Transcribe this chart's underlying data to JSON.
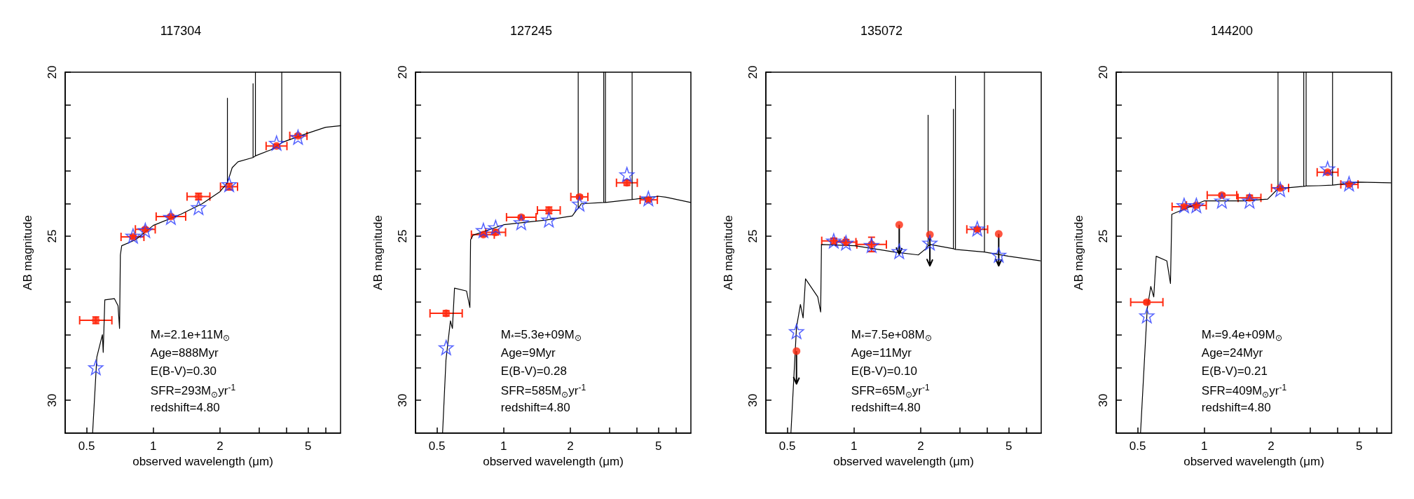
{
  "chart_data": [
    {
      "type": "scatter",
      "title": "117304",
      "xlabel": "observed wavelength (μm)",
      "ylabel": "AB magnitude",
      "log": "x",
      "xlim": [
        0.4,
        7
      ],
      "ylim": [
        31,
        20
      ],
      "xticks": [
        0.5,
        1,
        2,
        {
          "value": 3,
          "label": null
        },
        {
          "value": 4,
          "label": null
        },
        5,
        {
          "value": 6,
          "label": null
        }
      ],
      "yticks": [
        20,
        {
          "value": 21,
          "label": null
        },
        {
          "value": 22,
          "label": null
        },
        {
          "value": 23,
          "label": null
        },
        {
          "value": 24,
          "label": null
        },
        25,
        {
          "value": 26,
          "label": null
        },
        {
          "value": 27,
          "label": null
        },
        {
          "value": 28,
          "label": null
        },
        {
          "value": 29,
          "label": null
        },
        30
      ],
      "annotations": [
        "M$_{*}$=2.1e+11M$_{⊙}$",
        "Age=888Myr",
        "E(B-V)=0.30",
        "SFR=293M$_{⊙}$yr$^{-1}$",
        "redshift=4.80"
      ],
      "series": [
        {
          "type": "line",
          "color": "#000000",
          "marker": "none",
          "x": [
            0.532,
            0.556,
            0.589,
            0.594,
            0.604,
            0.667,
            0.693,
            0.704,
            0.71,
            0.72,
            0.83,
            1.0,
            1.33,
            1.66,
            2.0,
            2.16,
            2.16,
            2.16,
            2.27,
            2.41,
            2.82,
            2.82,
            2.82,
            2.89,
            2.89,
            2.89,
            3.41,
            3.8,
            3.8,
            3.8,
            3.99,
            4.97,
            5.99,
            7.0
          ],
          "values": [
            31.0,
            28.68,
            28.0,
            28.54,
            26.94,
            26.9,
            27.12,
            27.81,
            25.57,
            25.29,
            25.11,
            24.67,
            24.33,
            24.01,
            23.64,
            23.37,
            20.79,
            23.37,
            22.91,
            22.73,
            22.6,
            20.35,
            22.6,
            22.55,
            20.0,
            22.55,
            22.36,
            22.15,
            20.0,
            22.15,
            22.09,
            21.86,
            21.68,
            21.63
          ]
        },
        {
          "color": "#ff2a10",
          "marker": "circle",
          "x": [
            0.55,
            0.81,
            0.92,
            1.2,
            1.6,
            2.2,
            3.6,
            4.5
          ],
          "values": [
            27.56,
            25.02,
            24.79,
            24.4,
            23.79,
            23.49,
            22.25,
            21.94
          ],
          "errors": [
            0.1,
            0.05,
            0.05,
            0.05,
            0.1,
            0.1,
            0.05,
            0.05
          ],
          "xerrors": [
            [
              0.465,
              0.65
            ],
            [
              0.715,
              0.907
            ],
            [
              0.83,
              1.02
            ],
            [
              1.03,
              1.4
            ],
            [
              1.42,
              1.8
            ],
            [
              2.01,
              2.4
            ],
            [
              3.23,
              4.01
            ],
            [
              4.13,
              4.94
            ]
          ]
        },
        {
          "color": "#2a3cff",
          "marker": "star",
          "x": [
            0.55,
            0.81,
            0.92,
            1.2,
            1.6,
            2.2,
            3.6,
            4.5
          ],
          "values": [
            29.0,
            24.99,
            24.82,
            24.42,
            24.12,
            23.42,
            22.16,
            21.98
          ]
        }
      ]
    },
    {
      "type": "scatter",
      "title": "127245",
      "xlabel": "observed wavelength (μm)",
      "ylabel": "AB magnitude",
      "log": "x",
      "xlim": [
        0.4,
        7
      ],
      "ylim": [
        31,
        20
      ],
      "xticks": [
        0.5,
        1,
        2,
        {
          "value": 3,
          "label": null
        },
        {
          "value": 4,
          "label": null
        },
        5,
        {
          "value": 6,
          "label": null
        }
      ],
      "yticks": [
        20,
        {
          "value": 21,
          "label": null
        },
        {
          "value": 22,
          "label": null
        },
        {
          "value": 23,
          "label": null
        },
        {
          "value": 24,
          "label": null
        },
        25,
        {
          "value": 26,
          "label": null
        },
        {
          "value": 27,
          "label": null
        },
        {
          "value": 28,
          "label": null
        },
        {
          "value": 29,
          "label": null
        },
        30
      ],
      "annotations": [
        "M$_{*}$=5.3e+09M$_{⊙}$",
        "Age=9Myr",
        "E(B-V)=0.28",
        "SFR=585M$_{⊙}$yr$^{-1}$",
        "redshift=4.80"
      ],
      "series": [
        {
          "type": "line",
          "color": "#000000",
          "marker": "none",
          "x": [
            0.53,
            0.549,
            0.575,
            0.587,
            0.6,
            0.68,
            0.704,
            0.709,
            0.727,
            1.0,
            1.54,
            2.04,
            2.14,
            2.17,
            2.17,
            2.17,
            2.24,
            2.83,
            2.83,
            2.83,
            2.88,
            2.88,
            2.88,
            3.8,
            3.8,
            3.8,
            3.93,
            4.98,
            5.4,
            6.98
          ],
          "values": [
            31.0,
            28.77,
            27.58,
            27.81,
            26.58,
            26.67,
            27.17,
            25.11,
            24.97,
            24.65,
            24.51,
            24.38,
            24.19,
            24.15,
            20.0,
            24.15,
            24.01,
            23.97,
            20.0,
            23.97,
            23.97,
            20.0,
            23.97,
            23.88,
            20.0,
            23.88,
            23.87,
            23.78,
            23.81,
            23.97
          ]
        },
        {
          "color": "#ff2a10",
          "marker": "circle",
          "x": [
            0.55,
            0.81,
            0.92,
            1.2,
            1.6,
            2.2,
            3.6,
            4.5
          ],
          "values": [
            27.35,
            24.95,
            24.88,
            24.42,
            24.21,
            23.8,
            23.37,
            23.89
          ],
          "errors": [
            0.08,
            0.05,
            0.08,
            0.05,
            0.1,
            0.05,
            0.08,
            0.05
          ],
          "xerrors": [
            [
              0.465,
              0.65
            ],
            [
              0.715,
              0.907
            ],
            [
              0.83,
              1.02
            ],
            [
              1.03,
              1.4
            ],
            [
              1.42,
              1.8
            ],
            [
              2.01,
              2.4
            ],
            [
              3.23,
              4.01
            ],
            [
              4.13,
              4.94
            ]
          ]
        },
        {
          "color": "#2a3cff",
          "marker": "star",
          "x": [
            0.55,
            0.81,
            0.92,
            1.2,
            1.6,
            2.2,
            3.6,
            4.5
          ],
          "values": [
            28.39,
            24.82,
            24.73,
            24.58,
            24.5,
            24.01,
            23.12,
            23.85
          ]
        }
      ]
    },
    {
      "type": "scatter",
      "title": "135072",
      "xlabel": "observed wavelength (μm)",
      "ylabel": "AB magnitude",
      "log": "x",
      "xlim": [
        0.4,
        7
      ],
      "ylim": [
        31,
        20
      ],
      "xticks": [
        0.5,
        1,
        2,
        {
          "value": 3,
          "label": null
        },
        {
          "value": 4,
          "label": null
        },
        5,
        {
          "value": 6,
          "label": null
        }
      ],
      "yticks": [
        20,
        {
          "value": 21,
          "label": null
        },
        {
          "value": 22,
          "label": null
        },
        {
          "value": 23,
          "label": null
        },
        {
          "value": 24,
          "label": null
        },
        25,
        {
          "value": 26,
          "label": null
        },
        {
          "value": 27,
          "label": null
        },
        {
          "value": 28,
          "label": null
        },
        {
          "value": 29,
          "label": null
        },
        30
      ],
      "annotations": [
        "M$_{*}$=7.5e+08M$_{⊙}$",
        "Age=11Myr",
        "E(B-V)=0.10",
        "SFR=65M$_{⊙}$yr$^{-1}$",
        "redshift=4.80"
      ],
      "series": [
        {
          "type": "line",
          "color": "#000000",
          "marker": "none",
          "x": [
            0.519,
            0.55,
            0.573,
            0.589,
            0.604,
            0.686,
            0.707,
            0.713,
            1.01,
            1.52,
            1.95,
            2.11,
            2.16,
            2.16,
            2.16,
            2.21,
            2.81,
            2.81,
            2.81,
            2.87,
            2.87,
            2.87,
            3.88,
            3.88,
            3.88,
            4.99,
            6.93
          ],
          "values": [
            31.0,
            27.77,
            27.08,
            27.49,
            26.3,
            26.85,
            27.31,
            25.25,
            25.29,
            25.48,
            25.57,
            25.38,
            25.3,
            21.31,
            25.3,
            25.25,
            25.38,
            21.13,
            25.38,
            25.4,
            20.12,
            25.4,
            25.48,
            20.0,
            25.48,
            25.61,
            25.75
          ]
        },
        {
          "color": "#ff2a10",
          "marker": "circle",
          "x": [
            0.55,
            0.81,
            0.92,
            1.2,
            1.6,
            2.2,
            3.6,
            4.5
          ],
          "values": [
            28.5,
            25.14,
            25.18,
            25.25,
            24.65,
            24.95,
            24.79,
            24.93
          ],
          "errors": [
            [
              28.5,
              29.5
            ],
            0.08,
            0.08,
            0.22,
            [
              24.65,
              25.55
            ],
            [
              24.95,
              25.9
            ],
            0.05,
            [
              24.93,
              25.9
            ]
          ],
          "xerrors": [
            null,
            [
              0.715,
              0.907
            ],
            [
              0.83,
              1.02
            ],
            [
              1.03,
              1.4
            ],
            null,
            null,
            [
              3.23,
              4.01
            ],
            null
          ]
        },
        {
          "color": "#2a3cff",
          "marker": "star",
          "x": [
            0.55,
            0.81,
            0.92,
            1.2,
            1.6,
            2.2,
            3.6,
            4.5
          ],
          "values": [
            27.9,
            25.14,
            25.2,
            25.27,
            25.46,
            25.2,
            24.77,
            25.57
          ]
        }
      ]
    },
    {
      "type": "scatter",
      "title": "144200",
      "xlabel": "observed wavelength (μm)",
      "ylabel": "AB magnitude",
      "log": "x",
      "xlim": [
        0.4,
        7
      ],
      "ylim": [
        31,
        20
      ],
      "xticks": [
        0.5,
        1,
        2,
        {
          "value": 3,
          "label": null
        },
        {
          "value": 4,
          "label": null
        },
        5,
        {
          "value": 6,
          "label": null
        }
      ],
      "yticks": [
        20,
        {
          "value": 21,
          "label": null
        },
        {
          "value": 22,
          "label": null
        },
        {
          "value": 23,
          "label": null
        },
        {
          "value": 24,
          "label": null
        },
        25,
        {
          "value": 26,
          "label": null
        },
        {
          "value": 27,
          "label": null
        },
        {
          "value": 28,
          "label": null
        },
        {
          "value": 29,
          "label": null
        },
        30
      ],
      "annotations": [
        "M$_{*}$=9.4e+09M$_{⊙}$",
        "Age=24Myr",
        "E(B-V)=0.21",
        "SFR=409M$_{⊙}$yr$^{-1}$",
        "redshift=4.80"
      ],
      "series": [
        {
          "type": "line",
          "color": "#000000",
          "marker": "none",
          "x": [
            0.515,
            0.552,
            0.573,
            0.591,
            0.606,
            0.677,
            0.703,
            0.713,
            1.0,
            1.5,
            1.93,
            2.15,
            2.15,
            2.15,
            2.48,
            2.81,
            2.81,
            2.81,
            2.88,
            2.88,
            2.88,
            3.28,
            3.79,
            3.79,
            3.79,
            5.0,
            6.95
          ],
          "values": [
            31.0,
            27.22,
            26.53,
            26.85,
            25.61,
            25.75,
            26.44,
            24.33,
            23.92,
            23.92,
            23.87,
            23.55,
            20.0,
            23.55,
            23.51,
            23.48,
            20.0,
            23.48,
            23.47,
            20.0,
            23.47,
            23.46,
            23.44,
            20.0,
            23.44,
            23.35,
            23.37
          ]
        },
        {
          "color": "#ff2a10",
          "marker": "circle",
          "x": [
            0.55,
            0.81,
            0.92,
            1.2,
            1.6,
            2.2,
            3.6,
            4.5
          ],
          "values": [
            27.01,
            24.1,
            24.06,
            23.75,
            23.83,
            23.53,
            23.05,
            23.42
          ],
          "errors": [
            0.05,
            0.05,
            0.05,
            0.05,
            0.08,
            0.05,
            0.05,
            0.05
          ],
          "xerrors": [
            [
              0.465,
              0.65
            ],
            [
              0.715,
              0.907
            ],
            [
              0.83,
              1.02
            ],
            [
              1.03,
              1.4
            ],
            [
              1.42,
              1.8
            ],
            [
              2.01,
              2.4
            ],
            [
              3.23,
              4.01
            ],
            [
              4.13,
              4.94
            ]
          ]
        },
        {
          "color": "#2a3cff",
          "marker": "star",
          "x": [
            0.55,
            0.81,
            0.92,
            1.2,
            1.6,
            2.2,
            3.6,
            4.5
          ],
          "values": [
            27.42,
            24.06,
            24.06,
            23.92,
            23.92,
            23.57,
            22.94,
            23.4
          ]
        }
      ]
    }
  ]
}
